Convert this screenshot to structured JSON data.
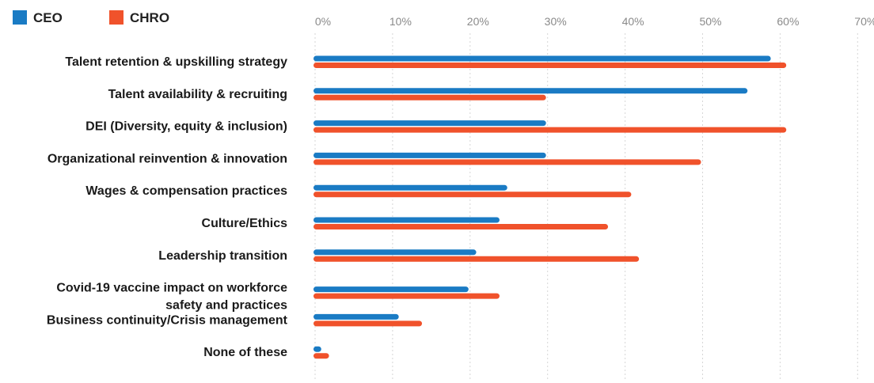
{
  "chart_data": {
    "type": "bar",
    "orientation": "horizontal",
    "categories": [
      [
        "Talent retention & upskilling strategy"
      ],
      [
        "Talent availability & recruiting"
      ],
      [
        "DEI (Diversity, equity & inclusion)"
      ],
      [
        "Organizational  reinvention & innovation"
      ],
      [
        "Wages & compensation practices"
      ],
      [
        "Culture/Ethics"
      ],
      [
        "Leadership transition"
      ],
      [
        "Covid-19 vaccine impact on workforce",
        "safety and practices"
      ],
      [
        "Business continuity/Crisis management"
      ],
      [
        "None of these"
      ]
    ],
    "series": [
      {
        "name": "CEO",
        "color": "#1a7bc4",
        "values": [
          59,
          56,
          30,
          30,
          25,
          24,
          21,
          20,
          11,
          1
        ]
      },
      {
        "name": "CHRO",
        "color": "#f0522b",
        "values": [
          61,
          30,
          61,
          50,
          41,
          38,
          42,
          24,
          14,
          2
        ]
      }
    ],
    "x_ticks": [
      "0%",
      "10%",
      "20%",
      "30%",
      "40%",
      "50%",
      "60%",
      "70%"
    ],
    "xlim": [
      0,
      70
    ],
    "grid": true,
    "legend_position": "top-left"
  }
}
